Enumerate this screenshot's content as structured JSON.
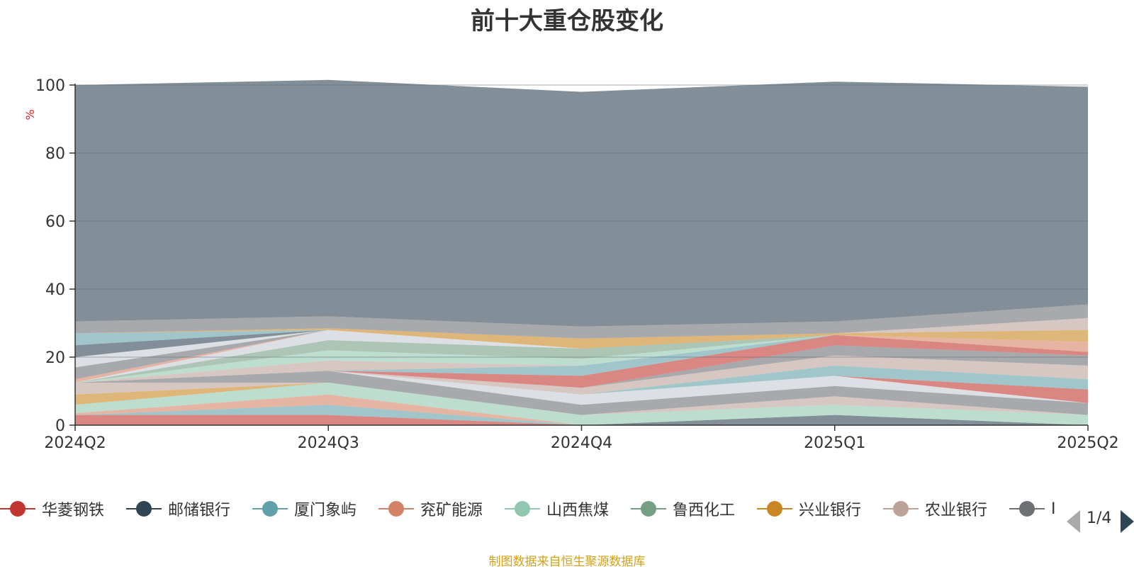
{
  "chart_data": {
    "type": "area",
    "title": "前十大重仓股变化",
    "ylabel": "%",
    "ylim": [
      0,
      100
    ],
    "y_ticks": [
      0,
      20,
      40,
      60,
      80,
      100
    ],
    "grid": true,
    "stacked": true,
    "legend_position": "bottom",
    "categories": [
      "2024Q2",
      "2024Q3",
      "2024Q4",
      "2025Q1",
      "2025Q2"
    ],
    "series": [
      {
        "name": "华菱钢铁",
        "color": "#c23531",
        "values": [
          3.0,
          3.0,
          0,
          0,
          0
        ]
      },
      {
        "name": "邮储银行",
        "color": "#2f4554",
        "values": [
          0,
          0,
          0,
          3.0,
          0
        ]
      },
      {
        "name": "厦门象屿",
        "color": "#61a0a8",
        "values": [
          0,
          3.0,
          0,
          0,
          0
        ]
      },
      {
        "name": "兖矿能源",
        "color": "#d48265",
        "values": [
          0.5,
          3.0,
          0,
          0,
          0
        ]
      },
      {
        "name": "山西焦煤",
        "color": "#91c7ae",
        "values": [
          2.5,
          3.5,
          3.0,
          3.0,
          3.0
        ]
      },
      {
        "name": "鲁西化工",
        "color": "#749f83",
        "values": [
          0,
          0,
          0,
          0,
          0
        ]
      },
      {
        "name": "兴业银行",
        "color": "#ca8622",
        "values": [
          3.0,
          0,
          0,
          0,
          0
        ]
      },
      {
        "name": "农业银行",
        "color": "#bda29a",
        "values": [
          3.5,
          0,
          0,
          2.5,
          0
        ]
      },
      {
        "name": "",
        "color": "#6e7074",
        "values": [
          0,
          3.5,
          3.0,
          3.0,
          3.5
        ]
      },
      {
        "name": "",
        "color": "#c4ccd3",
        "values": [
          0,
          0,
          3.0,
          3.0,
          0
        ]
      },
      {
        "name": "",
        "color": "#c23531",
        "values": [
          0,
          0,
          0,
          0,
          4.0
        ]
      },
      {
        "name": "",
        "color": "#61a0a8",
        "values": [
          0,
          0,
          0,
          3.0,
          3.0
        ]
      },
      {
        "name": "",
        "color": "#bda29a",
        "values": [
          0,
          0,
          2.0,
          3.0,
          4.0
        ]
      },
      {
        "name": "",
        "color": "#6e7074",
        "values": [
          0,
          0,
          0,
          3.0,
          3.0
        ]
      },
      {
        "name": "",
        "color": "#c23531",
        "values": [
          0,
          0,
          3.5,
          3.0,
          1.0
        ]
      },
      {
        "name": "",
        "color": "#61a0a8",
        "values": [
          0,
          0,
          3.0,
          0,
          0
        ]
      },
      {
        "name": "",
        "color": "#bda29a",
        "values": [
          0,
          3.0,
          0,
          0,
          0
        ]
      },
      {
        "name": "",
        "color": "#91c7ae",
        "values": [
          0,
          3.0,
          2.0,
          0,
          0
        ]
      },
      {
        "name": "",
        "color": "#749f83",
        "values": [
          0,
          3.0,
          3.0,
          0,
          0
        ]
      },
      {
        "name": "",
        "color": "#c4ccd3",
        "values": [
          0,
          3.0,
          0,
          0,
          0
        ]
      },
      {
        "name": "",
        "color": "#d48265",
        "values": [
          1.0,
          0,
          0,
          0,
          3.0
        ]
      },
      {
        "name": "",
        "color": "#749f83",
        "values": [
          0,
          0,
          0,
          0,
          0
        ]
      },
      {
        "name": "",
        "color": "#6e7074",
        "values": [
          3.5,
          0,
          0,
          0,
          0
        ]
      },
      {
        "name": "",
        "color": "#c4ccd3",
        "values": [
          3.0,
          0,
          0,
          0,
          0
        ]
      },
      {
        "name": "",
        "color": "#2f4554",
        "values": [
          3.5,
          0,
          0,
          0,
          0
        ]
      },
      {
        "name": "",
        "color": "#61a0a8",
        "values": [
          3.5,
          0,
          0,
          0,
          0
        ]
      },
      {
        "name": "",
        "color": "#ca8622",
        "values": [
          0,
          0.5,
          3.0,
          0.5,
          3.5
        ]
      },
      {
        "name": "",
        "color": "#bda29a",
        "values": [
          0,
          0,
          0,
          0,
          3.5
        ]
      },
      {
        "name": "",
        "color": "#6e7074",
        "values": [
          3.5,
          3.5,
          3.5,
          3.5,
          4.0
        ]
      },
      {
        "name": "",
        "color": "#2f4554",
        "values": [
          69.5,
          69.5,
          69,
          70.5,
          64.0
        ]
      }
    ]
  },
  "legend": {
    "visible_items": [
      {
        "name": "华菱钢铁",
        "color": "#c23531"
      },
      {
        "name": "邮储银行",
        "color": "#2f4554"
      },
      {
        "name": "厦门象屿",
        "color": "#61a0a8"
      },
      {
        "name": "兖矿能源",
        "color": "#d48265"
      },
      {
        "name": "山西焦煤",
        "color": "#91c7ae"
      },
      {
        "name": "鲁西化工",
        "color": "#749f83"
      },
      {
        "name": "兴业银行",
        "color": "#ca8622"
      },
      {
        "name": "农业银行",
        "color": "#bda29a"
      },
      {
        "name": "Ⅰ",
        "color": "#6e7074"
      }
    ],
    "pager_text": "1/4"
  },
  "source_note": "制图数据来自恒生聚源数据库"
}
